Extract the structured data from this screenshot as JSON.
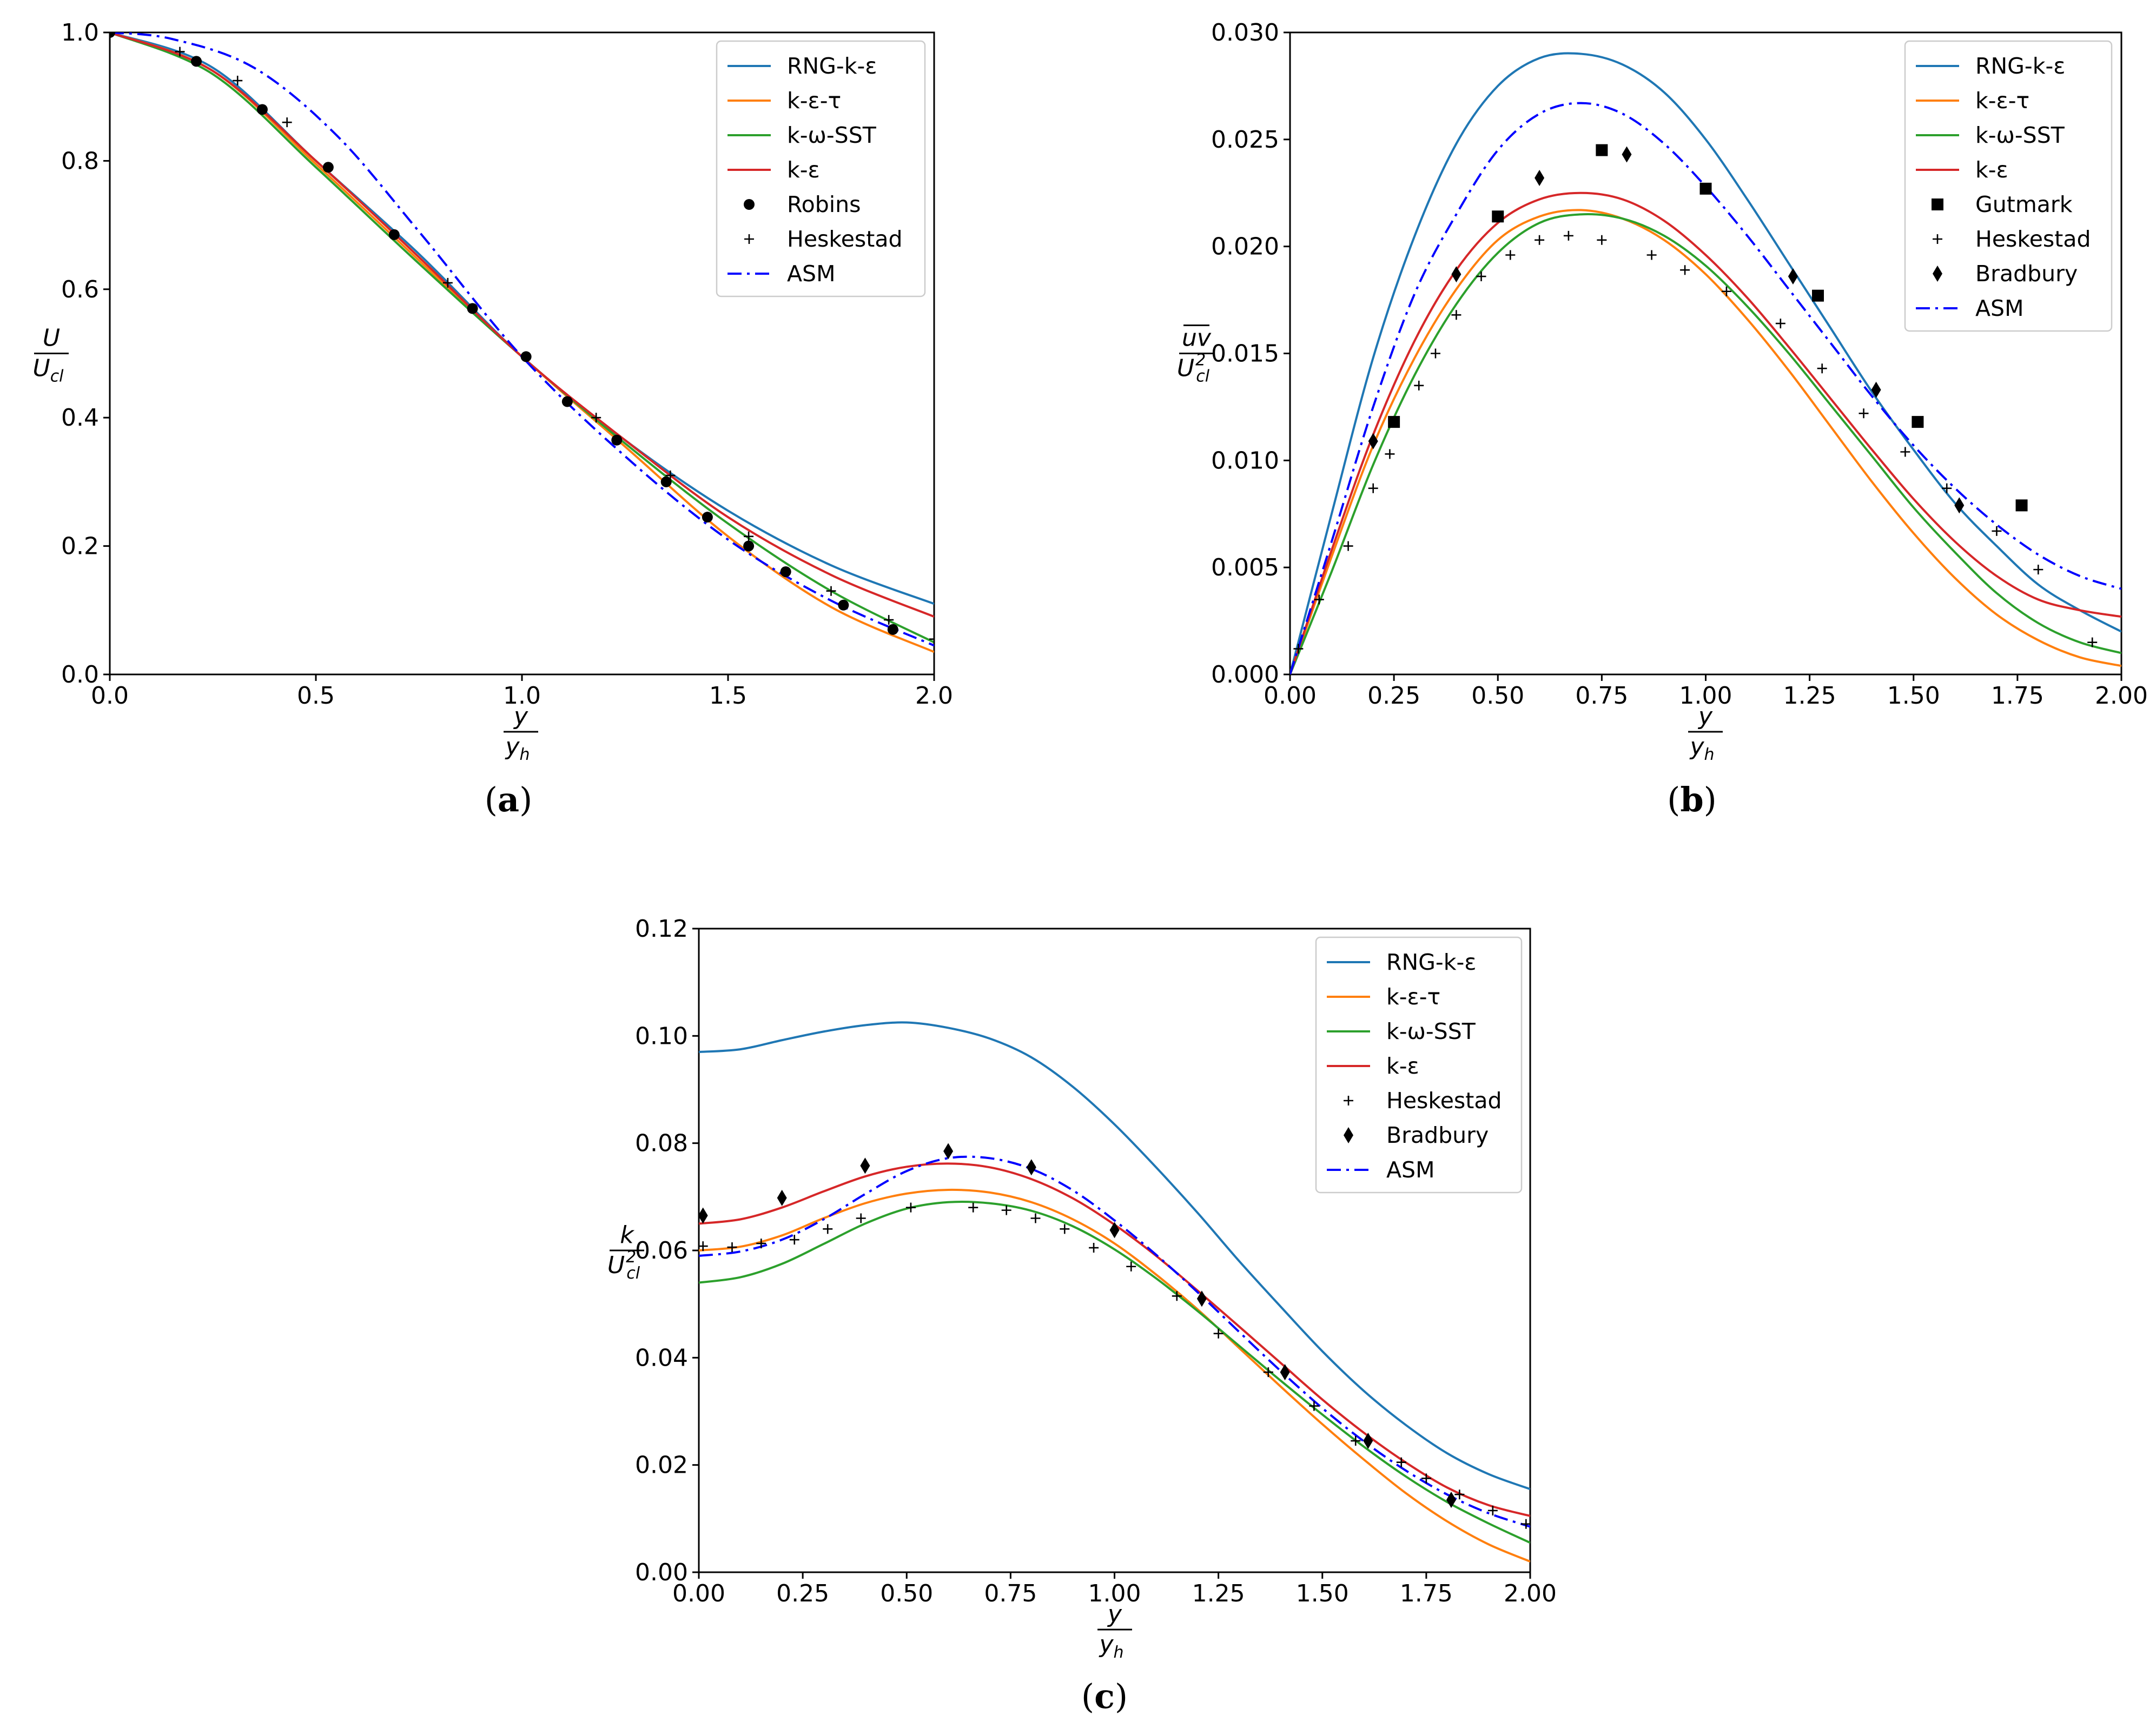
{
  "figure": {
    "panels": [
      {
        "id": "a",
        "label_open": "(",
        "label_letter": "a",
        "label_close": ")"
      },
      {
        "id": "b",
        "label_open": "(",
        "label_letter": "b",
        "label_close": ")"
      },
      {
        "id": "c",
        "label_open": "(",
        "label_letter": "c",
        "label_close": ")"
      }
    ]
  },
  "series_styles": {
    "RNG-k-ε": {
      "color": "#1f77b4",
      "dash": "solid"
    },
    "k-ε-τ": {
      "color": "#ff7f0e",
      "dash": "solid"
    },
    "k-ω-SST": {
      "color": "#2ca02c",
      "dash": "solid"
    },
    "k-ε": {
      "color": "#d62728",
      "dash": "solid"
    },
    "ASM": {
      "color": "#0000ff",
      "dash": "dashdot"
    },
    "Robins": {
      "color": "#000000",
      "marker": "circle"
    },
    "Heskestad": {
      "color": "#000000",
      "marker": "plus"
    },
    "Gutmark": {
      "color": "#000000",
      "marker": "square"
    },
    "Bradbury": {
      "color": "#000000",
      "marker": "diamond"
    }
  },
  "chart_data": [
    {
      "id": "a",
      "type": "line",
      "xlabel": {
        "num": "y",
        "den": "y",
        "den_sub": "h"
      },
      "ylabel": {
        "num": "U",
        "den": "U",
        "den_sub": "cl"
      },
      "xlim": [
        0,
        2.0
      ],
      "ylim": [
        0,
        1.0
      ],
      "xticks": [
        "0.0",
        "0.5",
        "1.0",
        "1.5",
        "2.0"
      ],
      "xtick_values": [
        0,
        0.5,
        1.0,
        1.5,
        2.0
      ],
      "yticks": [
        "0.0",
        "0.2",
        "0.4",
        "0.6",
        "0.8",
        "1.0"
      ],
      "ytick_values": [
        0,
        0.2,
        0.4,
        0.6,
        0.8,
        1.0
      ],
      "legend_position": "top-right",
      "legend": [
        "RNG-k-ε",
        "k-ε-τ",
        "k-ω-SST",
        "k-ε",
        "Robins",
        "Heskestad",
        "ASM"
      ],
      "series": [
        {
          "name": "RNG-k-ε",
          "x": [
            0,
            0.25,
            0.5,
            0.75,
            1.0,
            1.25,
            1.5,
            1.75,
            2.0
          ],
          "y": [
            1.0,
            0.945,
            0.8,
            0.655,
            0.495,
            0.365,
            0.255,
            0.17,
            0.11
          ]
        },
        {
          "name": "k-ε-τ",
          "x": [
            0,
            0.25,
            0.5,
            0.75,
            1.0,
            1.25,
            1.5,
            1.75,
            2.0
          ],
          "y": [
            1.0,
            0.94,
            0.795,
            0.645,
            0.495,
            0.355,
            0.215,
            0.105,
            0.035
          ]
        },
        {
          "name": "k-ω-SST",
          "x": [
            0,
            0.25,
            0.5,
            0.75,
            1.0,
            1.25,
            1.5,
            1.75,
            2.0
          ],
          "y": [
            1.0,
            0.935,
            0.79,
            0.64,
            0.495,
            0.36,
            0.235,
            0.13,
            0.05
          ]
        },
        {
          "name": "k-ε",
          "x": [
            0,
            0.25,
            0.5,
            0.75,
            1.0,
            1.25,
            1.5,
            1.75,
            2.0
          ],
          "y": [
            1.0,
            0.94,
            0.8,
            0.65,
            0.495,
            0.365,
            0.245,
            0.155,
            0.09
          ]
        },
        {
          "name": "ASM",
          "x": [
            0,
            0.15,
            0.35,
            0.55,
            0.75,
            1.0,
            1.25,
            1.5,
            1.75,
            2.0
          ],
          "y": [
            1.0,
            0.99,
            0.945,
            0.84,
            0.69,
            0.495,
            0.34,
            0.21,
            0.115,
            0.045
          ]
        },
        {
          "name": "Robins",
          "x": [
            0.0,
            0.21,
            0.37,
            0.53,
            0.69,
            0.88,
            1.01,
            1.11,
            1.23,
            1.35,
            1.45,
            1.55,
            1.64,
            1.78,
            1.9
          ],
          "y": [
            1.0,
            0.955,
            0.88,
            0.79,
            0.685,
            0.57,
            0.495,
            0.425,
            0.365,
            0.3,
            0.245,
            0.2,
            0.16,
            0.108,
            0.07
          ]
        },
        {
          "name": "Heskestad",
          "x": [
            0.17,
            0.31,
            0.43,
            0.82,
            1.18,
            1.36,
            1.55,
            1.75,
            1.89,
            2.0
          ],
          "y": [
            0.97,
            0.925,
            0.86,
            0.61,
            0.4,
            0.31,
            0.215,
            0.13,
            0.085,
            0.055
          ]
        }
      ]
    },
    {
      "id": "b",
      "type": "line",
      "xlabel": {
        "num": "y",
        "den": "y",
        "den_sub": "h"
      },
      "ylabel": {
        "num": "uv",
        "den": "U",
        "den_sup": "2",
        "den_sub": "cl"
      },
      "xlim": [
        0,
        2.0
      ],
      "ylim": [
        0,
        0.03
      ],
      "xticks": [
        "0.00",
        "0.25",
        "0.50",
        "0.75",
        "1.00",
        "1.25",
        "1.50",
        "1.75",
        "2.00"
      ],
      "xtick_values": [
        0,
        0.25,
        0.5,
        0.75,
        1.0,
        1.25,
        1.5,
        1.75,
        2.0
      ],
      "yticks": [
        "0.000",
        "0.005",
        "0.010",
        "0.015",
        "0.020",
        "0.025",
        "0.030"
      ],
      "ytick_values": [
        0,
        0.005,
        0.01,
        0.015,
        0.02,
        0.025,
        0.03
      ],
      "legend_position": "top-right",
      "legend": [
        "RNG-k-ε",
        "k-ε-τ",
        "k-ω-SST",
        "k-ε",
        "Gutmark",
        "Heskestad",
        "Bradbury",
        "ASM"
      ],
      "series": [
        {
          "name": "RNG-k-ε",
          "x": [
            0,
            0.1,
            0.2,
            0.3,
            0.4,
            0.5,
            0.6,
            0.7,
            0.8,
            0.9,
            1.0,
            1.1,
            1.2,
            1.3,
            1.4,
            1.5,
            1.6,
            1.7,
            1.8,
            1.9,
            2.0
          ],
          "y": [
            0.0,
            0.0075,
            0.0148,
            0.0205,
            0.0248,
            0.0275,
            0.0288,
            0.029,
            0.0285,
            0.0272,
            0.025,
            0.0222,
            0.0192,
            0.0162,
            0.0132,
            0.0105,
            0.008,
            0.006,
            0.0042,
            0.003,
            0.002
          ]
        },
        {
          "name": "k-ε-τ",
          "x": [
            0,
            0.1,
            0.2,
            0.3,
            0.4,
            0.5,
            0.6,
            0.7,
            0.8,
            0.9,
            1.0,
            1.1,
            1.2,
            1.3,
            1.4,
            1.5,
            1.6,
            1.7,
            1.8,
            1.9,
            2.0
          ],
          "y": [
            0.0,
            0.0055,
            0.0107,
            0.0148,
            0.018,
            0.0203,
            0.0214,
            0.0217,
            0.0213,
            0.0203,
            0.0187,
            0.0166,
            0.0142,
            0.0116,
            0.009,
            0.0066,
            0.0045,
            0.0028,
            0.0016,
            0.0008,
            0.0004
          ]
        },
        {
          "name": "k-ω-SST",
          "x": [
            0,
            0.1,
            0.2,
            0.3,
            0.4,
            0.5,
            0.6,
            0.7,
            0.8,
            0.9,
            1.0,
            1.1,
            1.2,
            1.3,
            1.4,
            1.5,
            1.6,
            1.7,
            1.8,
            1.9,
            2.0
          ],
          "y": [
            0.0,
            0.0048,
            0.0098,
            0.014,
            0.0173,
            0.0197,
            0.0211,
            0.0215,
            0.0213,
            0.0205,
            0.0191,
            0.0172,
            0.015,
            0.0126,
            0.0102,
            0.0078,
            0.0057,
            0.0038,
            0.0024,
            0.0015,
            0.001
          ]
        },
        {
          "name": "k-ε",
          "x": [
            0,
            0.1,
            0.2,
            0.3,
            0.4,
            0.5,
            0.6,
            0.7,
            0.8,
            0.9,
            1.0,
            1.1,
            1.2,
            1.3,
            1.4,
            1.5,
            1.6,
            1.7,
            1.8,
            1.9,
            2.0
          ],
          "y": [
            0.0,
            0.0058,
            0.0112,
            0.0156,
            0.0189,
            0.0211,
            0.0222,
            0.0225,
            0.0222,
            0.0212,
            0.0196,
            0.0176,
            0.0153,
            0.0129,
            0.0105,
            0.0082,
            0.0062,
            0.0046,
            0.0035,
            0.003,
            0.0027
          ]
        },
        {
          "name": "ASM",
          "x": [
            0,
            0.1,
            0.2,
            0.3,
            0.4,
            0.5,
            0.6,
            0.7,
            0.8,
            0.9,
            1.0,
            1.1,
            1.2,
            1.3,
            1.4,
            1.5,
            1.6,
            1.7,
            1.8,
            1.9,
            2.0
          ],
          "y": [
            0.0,
            0.0062,
            0.0125,
            0.0178,
            0.0215,
            0.0245,
            0.0262,
            0.0267,
            0.0262,
            0.0248,
            0.0228,
            0.0205,
            0.018,
            0.0155,
            0.013,
            0.0107,
            0.0087,
            0.007,
            0.0056,
            0.0046,
            0.004
          ]
        },
        {
          "name": "Gutmark",
          "x": [
            0.25,
            0.5,
            0.75,
            1.0,
            1.27,
            1.51,
            1.76
          ],
          "y": [
            0.0118,
            0.0214,
            0.0245,
            0.0227,
            0.0177,
            0.0118,
            0.0079
          ]
        },
        {
          "name": "Heskestad",
          "x": [
            0.02,
            0.07,
            0.14,
            0.2,
            0.24,
            0.31,
            0.35,
            0.4,
            0.46,
            0.53,
            0.6,
            0.67,
            0.75,
            0.87,
            0.95,
            1.05,
            1.18,
            1.28,
            1.38,
            1.48,
            1.58,
            1.7,
            1.8,
            1.93
          ],
          "y": [
            0.0012,
            0.0035,
            0.006,
            0.0087,
            0.0103,
            0.0135,
            0.015,
            0.0168,
            0.0186,
            0.0196,
            0.0203,
            0.0205,
            0.0203,
            0.0196,
            0.0189,
            0.0179,
            0.0164,
            0.0143,
            0.0122,
            0.0104,
            0.0087,
            0.0067,
            0.0049,
            0.0015
          ]
        },
        {
          "name": "Bradbury",
          "x": [
            0.2,
            0.4,
            0.6,
            0.81,
            1.21,
            1.41,
            1.61
          ],
          "y": [
            0.0109,
            0.0187,
            0.0232,
            0.0243,
            0.0186,
            0.0133,
            0.0079
          ]
        }
      ]
    },
    {
      "id": "c",
      "type": "line",
      "xlabel": {
        "num": "y",
        "den": "y",
        "den_sub": "h"
      },
      "ylabel": {
        "num": "k",
        "den": "U",
        "den_sup": "2",
        "den_sub": "cl"
      },
      "xlim": [
        0,
        2.0
      ],
      "ylim": [
        0,
        0.12
      ],
      "xticks": [
        "0.00",
        "0.25",
        "0.50",
        "0.75",
        "1.00",
        "1.25",
        "1.50",
        "1.75",
        "2.00"
      ],
      "xtick_values": [
        0,
        0.25,
        0.5,
        0.75,
        1.0,
        1.25,
        1.5,
        1.75,
        2.0
      ],
      "yticks": [
        "0.00",
        "0.02",
        "0.04",
        "0.06",
        "0.08",
        "0.10",
        "0.12"
      ],
      "ytick_values": [
        0,
        0.02,
        0.04,
        0.06,
        0.08,
        0.1,
        0.12
      ],
      "legend_position": "top-right",
      "legend": [
        "RNG-k-ε",
        "k-ε-τ",
        "k-ω-SST",
        "k-ε",
        "Heskestad",
        "Bradbury",
        "ASM"
      ],
      "series": [
        {
          "name": "RNG-k-ε",
          "x": [
            0,
            0.1,
            0.2,
            0.3,
            0.4,
            0.5,
            0.6,
            0.7,
            0.8,
            0.9,
            1.0,
            1.1,
            1.2,
            1.3,
            1.4,
            1.5,
            1.6,
            1.7,
            1.8,
            1.9,
            2.0
          ],
          "y": [
            0.097,
            0.0975,
            0.0992,
            0.1008,
            0.102,
            0.1025,
            0.1015,
            0.0995,
            0.096,
            0.0905,
            0.0835,
            0.0755,
            0.067,
            0.058,
            0.0495,
            0.0412,
            0.0338,
            0.0275,
            0.0222,
            0.0183,
            0.0155
          ]
        },
        {
          "name": "k-ε-τ",
          "x": [
            0,
            0.1,
            0.2,
            0.3,
            0.4,
            0.5,
            0.6,
            0.7,
            0.8,
            0.9,
            1.0,
            1.1,
            1.2,
            1.3,
            1.4,
            1.5,
            1.6,
            1.7,
            1.8,
            1.9,
            2.0
          ],
          "y": [
            0.06,
            0.0607,
            0.0628,
            0.066,
            0.0688,
            0.0706,
            0.0713,
            0.0708,
            0.069,
            0.0658,
            0.0613,
            0.0555,
            0.049,
            0.0418,
            0.0346,
            0.0276,
            0.021,
            0.0148,
            0.0095,
            0.0052,
            0.002
          ]
        },
        {
          "name": "k-ω-SST",
          "x": [
            0,
            0.1,
            0.2,
            0.3,
            0.4,
            0.5,
            0.6,
            0.7,
            0.8,
            0.9,
            1.0,
            1.1,
            1.2,
            1.3,
            1.4,
            1.5,
            1.6,
            1.7,
            1.8,
            1.9,
            2.0
          ],
          "y": [
            0.054,
            0.055,
            0.0575,
            0.0612,
            0.065,
            0.0678,
            0.069,
            0.0688,
            0.0674,
            0.0645,
            0.0602,
            0.0548,
            0.0487,
            0.0422,
            0.0357,
            0.0294,
            0.0234,
            0.0179,
            0.0131,
            0.0091,
            0.0055
          ]
        },
        {
          "name": "k-ε",
          "x": [
            0,
            0.1,
            0.2,
            0.3,
            0.4,
            0.5,
            0.6,
            0.7,
            0.8,
            0.9,
            1.0,
            1.1,
            1.2,
            1.3,
            1.4,
            1.5,
            1.6,
            1.7,
            1.8,
            1.9,
            2.0
          ],
          "y": [
            0.065,
            0.0658,
            0.068,
            0.071,
            0.0738,
            0.0756,
            0.0762,
            0.0755,
            0.0733,
            0.0697,
            0.0648,
            0.059,
            0.0525,
            0.0458,
            0.039,
            0.0322,
            0.026,
            0.0205,
            0.0158,
            0.0125,
            0.0105
          ]
        },
        {
          "name": "ASM",
          "x": [
            0,
            0.1,
            0.2,
            0.3,
            0.4,
            0.5,
            0.6,
            0.7,
            0.8,
            0.9,
            1.0,
            1.1,
            1.2,
            1.3,
            1.4,
            1.5,
            1.6,
            1.7,
            1.8,
            1.9,
            2.0
          ],
          "y": [
            0.059,
            0.0598,
            0.062,
            0.0658,
            0.0705,
            0.0748,
            0.0772,
            0.0772,
            0.0752,
            0.0712,
            0.0656,
            0.0592,
            0.0522,
            0.0448,
            0.0375,
            0.0306,
            0.0244,
            0.019,
            0.0145,
            0.011,
            0.0085
          ]
        },
        {
          "name": "Heskestad",
          "x": [
            0.01,
            0.08,
            0.15,
            0.23,
            0.31,
            0.39,
            0.51,
            0.66,
            0.74,
            0.81,
            0.88,
            0.95,
            1.04,
            1.15,
            1.25,
            1.37,
            1.48,
            1.58,
            1.69,
            1.75,
            1.83,
            1.91,
            1.99
          ],
          "y": [
            0.0608,
            0.0606,
            0.0613,
            0.062,
            0.064,
            0.066,
            0.068,
            0.068,
            0.0675,
            0.066,
            0.064,
            0.0605,
            0.057,
            0.0515,
            0.0445,
            0.0373,
            0.031,
            0.0245,
            0.0205,
            0.0175,
            0.0145,
            0.0115,
            0.009
          ]
        },
        {
          "name": "Bradbury",
          "x": [
            0.01,
            0.2,
            0.4,
            0.6,
            0.8,
            1.0,
            1.21,
            1.41,
            1.61,
            1.81
          ],
          "y": [
            0.0665,
            0.0698,
            0.0758,
            0.0785,
            0.0755,
            0.0638,
            0.051,
            0.0373,
            0.0245,
            0.0135
          ]
        }
      ]
    }
  ]
}
